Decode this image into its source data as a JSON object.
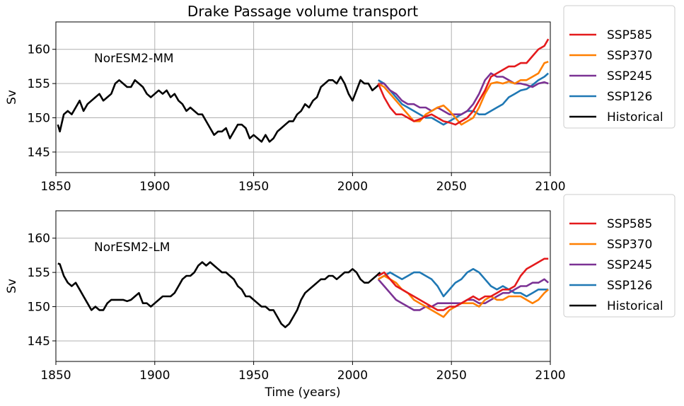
{
  "figure": {
    "title": "Drake Passage volume transport",
    "xlabel": "Time (years)"
  },
  "chart_data": [
    {
      "type": "line",
      "annotation": "NorESM2-MM",
      "ylabel": "Sv",
      "xlim": [
        1850,
        2100
      ],
      "ylim": [
        142,
        164
      ],
      "xticks": [
        1850,
        1900,
        1950,
        2000,
        2050,
        2100
      ],
      "yticks": [
        145,
        150,
        155,
        160
      ],
      "grid": true,
      "legend_position": "outside-right",
      "series": [
        {
          "name": "SSP585",
          "color": "#e41a1c",
          "x": [
            2013,
            2016,
            2019,
            2022,
            2025,
            2028,
            2031,
            2034,
            2037,
            2040,
            2043,
            2046,
            2049,
            2052,
            2055,
            2058,
            2061,
            2064,
            2067,
            2070,
            2073,
            2076,
            2079,
            2082,
            2085,
            2088,
            2091,
            2094,
            2097,
            2099
          ],
          "y": [
            155,
            153,
            151.5,
            150.5,
            150.5,
            150,
            149.5,
            149.8,
            150.2,
            150.5,
            150,
            149.5,
            149.3,
            149,
            149.5,
            150,
            151,
            152.5,
            154,
            156,
            156.5,
            157,
            157.5,
            157.5,
            158,
            158,
            159,
            160,
            160.5,
            161.5
          ]
        },
        {
          "name": "SSP370",
          "color": "#ff7f00",
          "x": [
            2013,
            2016,
            2019,
            2022,
            2025,
            2028,
            2031,
            2034,
            2037,
            2040,
            2043,
            2046,
            2049,
            2052,
            2055,
            2058,
            2061,
            2064,
            2067,
            2070,
            2073,
            2076,
            2079,
            2082,
            2085,
            2088,
            2091,
            2094,
            2097,
            2099
          ],
          "y": [
            155,
            154.5,
            153.5,
            152.5,
            151.5,
            150.5,
            149.5,
            149.5,
            150.5,
            151,
            151.5,
            151.8,
            151,
            150,
            149,
            149.5,
            150,
            151.5,
            153.5,
            155,
            155.2,
            155,
            155.3,
            155,
            155.5,
            155.5,
            156,
            156.5,
            158,
            158.2
          ]
        },
        {
          "name": "SSP245",
          "color": "#7b3294",
          "x": [
            2013,
            2016,
            2019,
            2022,
            2025,
            2028,
            2031,
            2034,
            2037,
            2040,
            2043,
            2046,
            2049,
            2052,
            2055,
            2058,
            2061,
            2064,
            2067,
            2070,
            2073,
            2076,
            2079,
            2082,
            2085,
            2088,
            2091,
            2094,
            2097,
            2099
          ],
          "y": [
            155,
            155,
            154,
            153.5,
            152.5,
            152,
            152,
            151.5,
            151.5,
            151,
            151.5,
            151,
            150.5,
            150.5,
            150.5,
            151,
            152,
            153.5,
            155.5,
            156.5,
            156,
            156,
            155.5,
            155,
            155,
            154.8,
            154.5,
            155,
            155.2,
            155
          ]
        },
        {
          "name": "SSP126",
          "color": "#1f78b4",
          "x": [
            2013,
            2016,
            2019,
            2022,
            2025,
            2028,
            2031,
            2034,
            2037,
            2040,
            2043,
            2046,
            2049,
            2052,
            2055,
            2058,
            2061,
            2064,
            2067,
            2070,
            2073,
            2076,
            2079,
            2082,
            2085,
            2088,
            2091,
            2094,
            2097,
            2099
          ],
          "y": [
            155.5,
            155,
            154,
            153,
            152,
            151.5,
            151,
            150.5,
            150,
            150,
            149.5,
            149,
            149.5,
            150,
            150.5,
            151,
            151,
            150.5,
            150.5,
            151,
            151.5,
            152,
            153,
            153.5,
            154,
            154.2,
            154.8,
            155.5,
            156,
            156.5
          ]
        },
        {
          "name": "Historical",
          "color": "#000000",
          "x": [
            1851,
            1852,
            1854,
            1856,
            1858,
            1860,
            1862,
            1864,
            1866,
            1868,
            1870,
            1872,
            1874,
            1876,
            1878,
            1880,
            1882,
            1884,
            1886,
            1888,
            1890,
            1892,
            1894,
            1896,
            1898,
            1900,
            1902,
            1904,
            1906,
            1908,
            1910,
            1912,
            1914,
            1916,
            1918,
            1920,
            1922,
            1924,
            1926,
            1928,
            1930,
            1932,
            1934,
            1936,
            1938,
            1940,
            1942,
            1944,
            1946,
            1948,
            1950,
            1952,
            1954,
            1956,
            1958,
            1960,
            1962,
            1964,
            1966,
            1968,
            1970,
            1972,
            1974,
            1976,
            1978,
            1980,
            1982,
            1984,
            1986,
            1988,
            1990,
            1992,
            1994,
            1996,
            1998,
            2000,
            2002,
            2004,
            2006,
            2008,
            2010,
            2012,
            2014
          ],
          "y": [
            149,
            148,
            150.5,
            151,
            150.5,
            151.5,
            152.5,
            151,
            152,
            152.5,
            153,
            153.5,
            152.5,
            153,
            153.5,
            155,
            155.5,
            155,
            154.5,
            154.5,
            155.5,
            155,
            154.5,
            153.5,
            153,
            153.5,
            154,
            153.5,
            154,
            153,
            153.5,
            152.5,
            152,
            151,
            151.5,
            151,
            150.5,
            150.5,
            149.5,
            148.5,
            147.5,
            148,
            148,
            148.5,
            147,
            148,
            149,
            149,
            148.5,
            147,
            147.5,
            147,
            146.5,
            147.5,
            146.5,
            147,
            148,
            148.5,
            149,
            149.5,
            149.5,
            150.5,
            151,
            152,
            151.5,
            152.5,
            153,
            154.5,
            155,
            155.5,
            155.5,
            155,
            156,
            155,
            153.5,
            152.5,
            154,
            155.5,
            155,
            155,
            154,
            154.5,
            155
          ]
        }
      ]
    },
    {
      "type": "line",
      "annotation": "NorESM2-LM",
      "ylabel": "Sv",
      "xlim": [
        1850,
        2100
      ],
      "ylim": [
        142,
        164
      ],
      "xticks": [
        1850,
        1900,
        1950,
        2000,
        2050,
        2100
      ],
      "yticks": [
        145,
        150,
        155,
        160
      ],
      "grid": true,
      "legend_position": "outside-right",
      "series": [
        {
          "name": "SSP585",
          "color": "#e41a1c",
          "x": [
            2013,
            2016,
            2019,
            2022,
            2025,
            2028,
            2031,
            2034,
            2037,
            2040,
            2043,
            2046,
            2049,
            2052,
            2055,
            2058,
            2061,
            2064,
            2067,
            2070,
            2073,
            2076,
            2079,
            2082,
            2085,
            2088,
            2091,
            2094,
            2097,
            2099
          ],
          "y": [
            154.5,
            155,
            154,
            153,
            152.5,
            152,
            151.5,
            151,
            150.5,
            150,
            149.5,
            149.5,
            150,
            150,
            150.5,
            151,
            151.5,
            151,
            151.5,
            151.5,
            152,
            152.5,
            152.5,
            153,
            154.5,
            155.5,
            156,
            156.5,
            157,
            157
          ]
        },
        {
          "name": "SSP370",
          "color": "#ff7f00",
          "x": [
            2013,
            2016,
            2019,
            2022,
            2025,
            2028,
            2031,
            2034,
            2037,
            2040,
            2043,
            2046,
            2049,
            2052,
            2055,
            2058,
            2061,
            2064,
            2067,
            2070,
            2073,
            2076,
            2079,
            2082,
            2085,
            2088,
            2091,
            2094,
            2097,
            2099
          ],
          "y": [
            154,
            154.5,
            154,
            153.5,
            152.5,
            152,
            151,
            150.5,
            150,
            149.5,
            149,
            148.5,
            149.5,
            150,
            150.5,
            150.5,
            150.5,
            150,
            151,
            151.5,
            151,
            151,
            151.5,
            151.5,
            151.5,
            151,
            150.5,
            151,
            152,
            152.5
          ]
        },
        {
          "name": "SSP245",
          "color": "#7b3294",
          "x": [
            2013,
            2016,
            2019,
            2022,
            2025,
            2028,
            2031,
            2034,
            2037,
            2040,
            2043,
            2046,
            2049,
            2052,
            2055,
            2058,
            2061,
            2064,
            2067,
            2070,
            2073,
            2076,
            2079,
            2082,
            2085,
            2088,
            2091,
            2094,
            2097,
            2099
          ],
          "y": [
            154,
            153,
            152,
            151,
            150.5,
            150,
            149.5,
            149.5,
            150,
            150,
            150.5,
            150.5,
            150.5,
            150.5,
            150.5,
            151,
            151,
            150.5,
            150.5,
            151,
            151.5,
            152,
            152,
            152.5,
            153,
            153,
            153.5,
            153.5,
            154,
            153.5
          ]
        },
        {
          "name": "SSP126",
          "color": "#1f78b4",
          "x": [
            2013,
            2016,
            2019,
            2022,
            2025,
            2028,
            2031,
            2034,
            2037,
            2040,
            2043,
            2046,
            2049,
            2052,
            2055,
            2058,
            2061,
            2064,
            2067,
            2070,
            2073,
            2076,
            2079,
            2082,
            2085,
            2088,
            2091,
            2094,
            2097,
            2099
          ],
          "y": [
            154,
            154.5,
            155,
            154.5,
            154,
            154.5,
            155,
            155,
            154.5,
            154,
            153,
            151.5,
            152.5,
            153.5,
            154,
            155,
            155.5,
            155,
            154,
            153,
            152.5,
            153,
            152.5,
            152,
            152,
            151.5,
            152,
            152.5,
            152.5,
            152.5
          ]
        },
        {
          "name": "Historical",
          "color": "#000000",
          "x": [
            1851,
            1852,
            1854,
            1856,
            1858,
            1860,
            1862,
            1864,
            1866,
            1868,
            1870,
            1872,
            1874,
            1876,
            1878,
            1880,
            1882,
            1884,
            1886,
            1888,
            1890,
            1892,
            1894,
            1896,
            1898,
            1900,
            1902,
            1904,
            1906,
            1908,
            1910,
            1912,
            1914,
            1916,
            1918,
            1920,
            1922,
            1924,
            1926,
            1928,
            1930,
            1932,
            1934,
            1936,
            1938,
            1940,
            1942,
            1944,
            1946,
            1948,
            1950,
            1952,
            1954,
            1956,
            1958,
            1960,
            1962,
            1964,
            1966,
            1968,
            1970,
            1972,
            1974,
            1976,
            1978,
            1980,
            1982,
            1984,
            1986,
            1988,
            1990,
            1992,
            1994,
            1996,
            1998,
            2000,
            2002,
            2004,
            2006,
            2008,
            2010,
            2012,
            2014
          ],
          "y": [
            156.3,
            156.2,
            154.5,
            153.5,
            153,
            153.5,
            152.5,
            151.5,
            150.5,
            149.5,
            150,
            149.5,
            149.5,
            150.5,
            151,
            151,
            151,
            151,
            150.8,
            151,
            151.5,
            152,
            150.5,
            150.5,
            150,
            150.5,
            151,
            151.5,
            151.5,
            151.5,
            152,
            153,
            154,
            154.5,
            154.5,
            155,
            156,
            156.5,
            156,
            156.5,
            156,
            155.5,
            155,
            155,
            154.5,
            154,
            153,
            152.5,
            151.5,
            151.5,
            151,
            150.5,
            150,
            150,
            149.5,
            149.5,
            148.5,
            147.5,
            147,
            147.5,
            148.5,
            149.5,
            151,
            152,
            152.5,
            153,
            153.5,
            154,
            154,
            154.5,
            154.5,
            154,
            154.5,
            155,
            155,
            155.5,
            155,
            154,
            153.5,
            153.5,
            154,
            154.5,
            155
          ]
        }
      ]
    }
  ]
}
